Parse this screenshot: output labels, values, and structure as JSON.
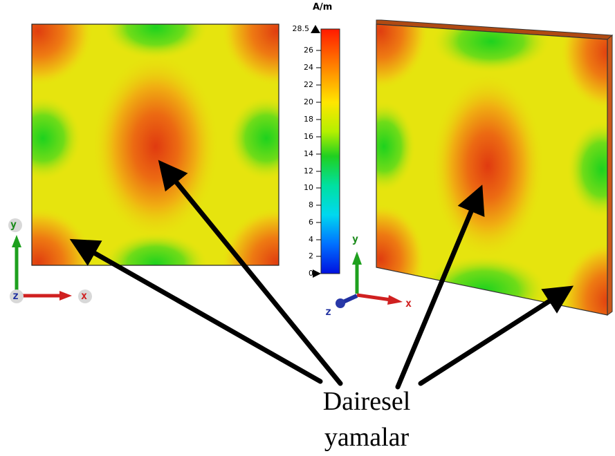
{
  "colorbar": {
    "unit": "A/m",
    "max_label": "28.5",
    "ticks": [
      "26",
      "24",
      "22",
      "20",
      "18",
      "16",
      "14",
      "12",
      "10",
      "8",
      "6",
      "4",
      "2",
      "0"
    ]
  },
  "axes_left": {
    "y": "y",
    "z": "z",
    "x": "x"
  },
  "axes_right": {
    "y": "y",
    "z": "z",
    "x": "x"
  },
  "annotation": {
    "line1": "Dairesel",
    "line2": "yamalar"
  },
  "colors": {
    "high": "#e04010",
    "mid_orange": "#f08a10",
    "yellow": "#e6e60a",
    "green": "#20d020"
  }
}
